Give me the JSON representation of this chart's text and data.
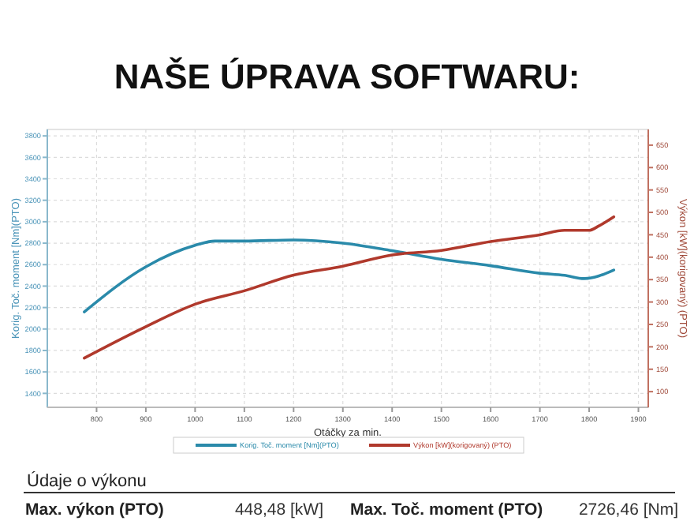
{
  "chart_data": {
    "type": "line",
    "title": "NAŠE ÚPRAVA SOFTWARU:",
    "xlabel": "Otáčky za min.",
    "ylabel": "Korig. Toč. moment [Nm](PTO)",
    "y2label": "Výkon [kW](korigovaný) (PTO)",
    "xlim": [
      700,
      1920
    ],
    "xticks": [
      800,
      900,
      1000,
      1100,
      1200,
      1300,
      1400,
      1500,
      1600,
      1700,
      1800,
      1900
    ],
    "ylim": [
      1270,
      3860
    ],
    "yticks": [
      1400,
      1600,
      1800,
      2000,
      2200,
      2400,
      2600,
      2800,
      3000,
      3200,
      3400,
      3600,
      3800
    ],
    "y2lim": [
      65,
      685
    ],
    "y2ticks": [
      100,
      150,
      200,
      250,
      300,
      350,
      400,
      450,
      500,
      550,
      600,
      650
    ],
    "grid": true,
    "legend": "bottom",
    "series": [
      {
        "name": "Korig. Toč. moment [Nm](PTO)",
        "color": "#2a8aaa",
        "x": [
          775,
          900,
          1000,
          1040,
          1100,
          1200,
          1300,
          1400,
          1500,
          1600,
          1700,
          1750,
          1790,
          1850
        ],
        "values": [
          2160,
          2580,
          2780,
          2820,
          2820,
          2830,
          2800,
          2730,
          2650,
          2590,
          2520,
          2500,
          2470,
          2550
        ]
      },
      {
        "name": "Výkon [kW](korigovaný) (PTO)",
        "color": "#b0392c",
        "axis": "y2",
        "x": [
          775,
          900,
          1000,
          1100,
          1200,
          1300,
          1400,
          1500,
          1600,
          1700,
          1750,
          1800,
          1820,
          1850
        ],
        "values": [
          175,
          245,
          295,
          325,
          360,
          380,
          405,
          415,
          435,
          450,
          460,
          460,
          470,
          490
        ]
      }
    ],
    "annotations": [
      "Údaje o výkonu",
      "Max. výkon (PTO)",
      "448,48 [kW]",
      "Max. Toč. moment (PTO)",
      "2726,46 [Nm]"
    ]
  }
}
